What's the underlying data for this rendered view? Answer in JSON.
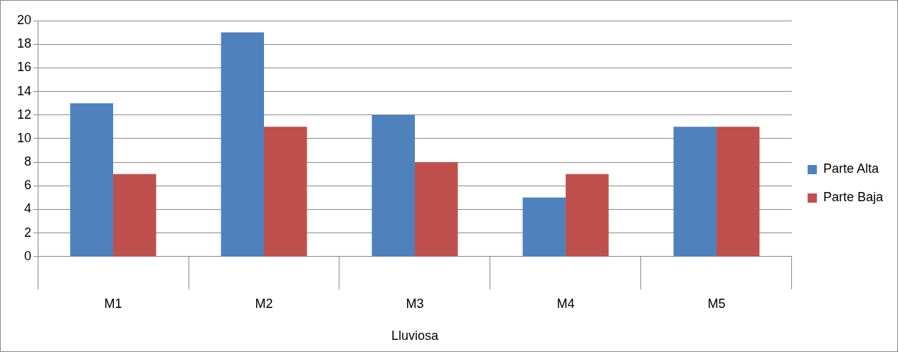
{
  "chart_data": {
    "type": "bar",
    "xlabel": "Lluviosa",
    "categories": [
      "M1",
      "M2",
      "M3",
      "M4",
      "M5"
    ],
    "series": [
      {
        "name": "Parte Alta",
        "color": "#4f81bd",
        "values": [
          13,
          19,
          12,
          5,
          11
        ]
      },
      {
        "name": "Parte Baja",
        "color": "#c0504d",
        "values": [
          7,
          11,
          8,
          7,
          11
        ]
      }
    ],
    "ylim": [
      0,
      20
    ],
    "yticks": [
      0,
      2,
      4,
      6,
      8,
      10,
      12,
      14,
      16,
      18,
      20
    ],
    "grid": "y",
    "legend": "right"
  }
}
